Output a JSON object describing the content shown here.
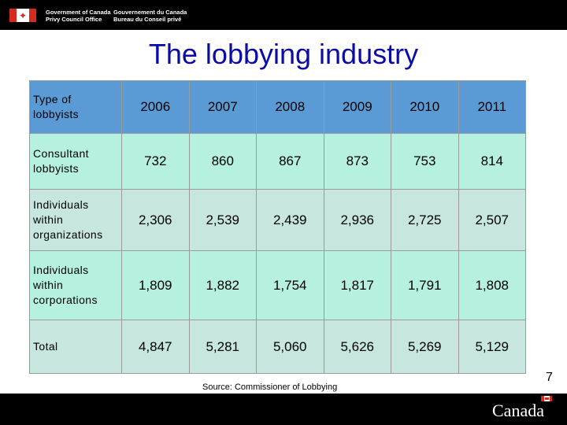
{
  "header": {
    "dept_en_line1": "Government of Canada",
    "dept_en_line2": "Privy Council Office",
    "dept_fr_line1": "Gouvernement du Canada",
    "dept_fr_line2": "Bureau du Conseil privé",
    "flag_icon": "canada-flag-icon"
  },
  "slide": {
    "title": "The lobbying industry",
    "source": "Source: Commissioner of Lobbying",
    "page_number": "7"
  },
  "table": {
    "corner_label": "Type of lobbyists",
    "years": [
      "2006",
      "2007",
      "2008",
      "2009",
      "2010",
      "2011"
    ],
    "rows": [
      {
        "label": "Consultant lobbyists",
        "values": [
          "732",
          "860",
          "867",
          "873",
          "753",
          "814"
        ]
      },
      {
        "label": "Individuals within organizations",
        "values": [
          "2,306",
          "2,539",
          "2,439",
          "2,936",
          "2,725",
          "2,507"
        ]
      },
      {
        "label": "Individuals within corporations",
        "values": [
          "1,809",
          "1,882",
          "1,754",
          "1,817",
          "1,791",
          "1,808"
        ]
      },
      {
        "label": "Total",
        "values": [
          "4,847",
          "5,281",
          "5,060",
          "5,626",
          "5,269",
          "5,129"
        ]
      }
    ]
  },
  "footer": {
    "wordmark": "Canada"
  },
  "colors": {
    "header_row": "#5b9bd5",
    "row_light": "#b6f0df",
    "row_alt": "#c6e6df",
    "title": "#0b0ba8",
    "flag_red": "#d52b1e"
  }
}
